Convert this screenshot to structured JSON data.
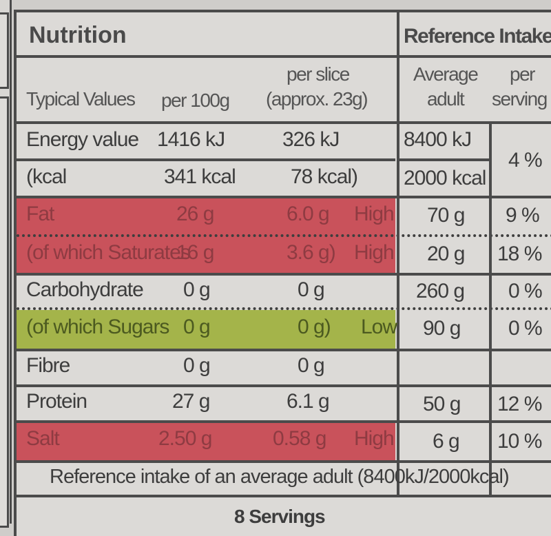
{
  "title": "Nutrition",
  "reference_title": "Reference Intake",
  "headers": {
    "typical": "Typical Values",
    "per100": "per 100g",
    "perslice_line1": "per slice",
    "perslice_line2": "(approx. 23g)",
    "avg_line1": "Average",
    "avg_line2": "adult",
    "serv_line1": "per",
    "serv_line2": "serving"
  },
  "rows": [
    {
      "name": "Energy value",
      "per100": "1416 kJ",
      "perslice": "326 kJ",
      "ri": "8400 kJ",
      "pct": "4 %",
      "level": ""
    },
    {
      "name": "(kcal",
      "per100": "341 kcal",
      "perslice": "78 kcal)",
      "ri": "2000 kcal",
      "pct": "",
      "level": ""
    },
    {
      "name": "Fat",
      "per100": "26 g",
      "perslice": "6.0 g",
      "ri": "70 g",
      "pct": "9 %",
      "level": "High"
    },
    {
      "name": "(of which Saturates",
      "per100": "16 g",
      "perslice": "3.6 g)",
      "ri": "20 g",
      "pct": "18 %",
      "level": "High"
    },
    {
      "name": "Carbohydrate",
      "per100": "0 g",
      "perslice": "0 g",
      "ri": "260 g",
      "pct": "0 %",
      "level": ""
    },
    {
      "name": "(of which Sugars",
      "per100": "0 g",
      "perslice": "0 g)",
      "ri": "90 g",
      "pct": "0 %",
      "level": "Low"
    },
    {
      "name": "Fibre",
      "per100": "0 g",
      "perslice": "0 g",
      "ri": "",
      "pct": "",
      "level": ""
    },
    {
      "name": "Protein",
      "per100": "27 g",
      "perslice": "6.1 g",
      "ri": "50 g",
      "pct": "12 %",
      "level": ""
    },
    {
      "name": "Salt",
      "per100": "2.50 g",
      "perslice": "0.58 g",
      "ri": "6 g",
      "pct": "10 %",
      "level": "High"
    }
  ],
  "footer_note": "Reference intake of an average adult (8400kJ/2000kcal)",
  "servings": "8 Servings",
  "colors": {
    "high": "#c9525b",
    "low": "#a4b44a"
  }
}
